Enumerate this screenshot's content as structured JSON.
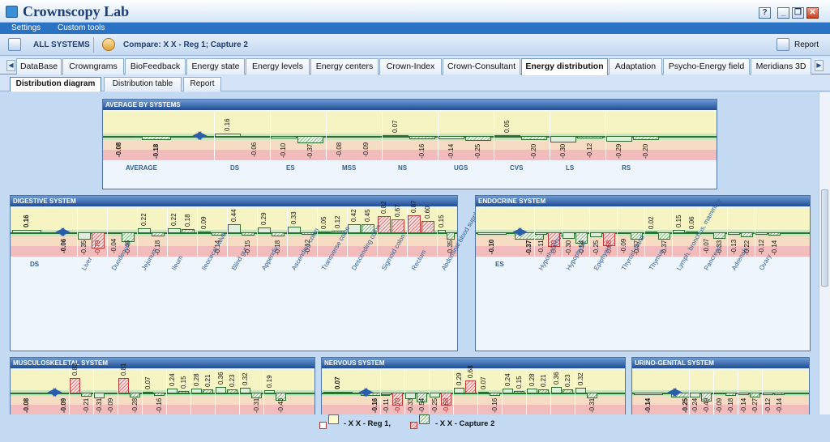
{
  "app": {
    "title": "Crownscopy Lab"
  },
  "window_buttons": [
    "?",
    "_",
    "❐",
    "✕"
  ],
  "menu": [
    "Settings",
    "Custom tools"
  ],
  "toolbar": {
    "all_systems": "ALL SYSTEMS",
    "compare": "Compare: X X  - Reg 1; Capture 2",
    "report": "Report"
  },
  "tabs": [
    "DataBase",
    "Crowngrams",
    "BioFeedback",
    "Energy state",
    "Energy levels",
    "Energy centers",
    "Crown-Index",
    "Crown-Consultant",
    "Energy distribution",
    "Adaptation",
    "Psycho-Energy field",
    "Meridians 3D"
  ],
  "active_tab": "Energy distribution",
  "subtabs": [
    "Distribution diagram",
    "Distribution table",
    "Report"
  ],
  "active_subtab": "Distribution diagram",
  "colors": {
    "accent": "#1e4c96",
    "green": "#c9e4bf",
    "yellow": "#f5f4c2",
    "orange": "#f5dcc2",
    "red": "#f2bcbc",
    "highlight": "#c23636"
  },
  "legend": {
    "reg": "- X X  - Reg 1,",
    "capture": "- X X  - Capture 2"
  },
  "chart_data": [
    {
      "type": "bar",
      "title": "AVERAGE BY SYSTEMS",
      "ylim": [
        -1,
        1
      ],
      "categories": [
        "AVERAGE",
        "DS",
        "ES",
        "MSS",
        "NS",
        "UGS",
        "CVS",
        "LS",
        "RS"
      ],
      "series": [
        {
          "name": "Reg 1",
          "values": [
            -0.08,
            0.16,
            -0.1,
            -0.08,
            0.07,
            -0.14,
            0.05,
            -0.3,
            -0.29
          ]
        },
        {
          "name": "Capture 2",
          "values": [
            -0.18,
            -0.06,
            -0.37,
            -0.09,
            -0.16,
            -0.25,
            -0.2,
            -0.12,
            -0.2
          ]
        }
      ]
    },
    {
      "type": "bar",
      "title": "DIGESTIVE SYSTEM",
      "ylim": [
        -1,
        1
      ],
      "categories": [
        "DS",
        "Liver",
        "Duodenum",
        "Jejunum",
        "Ileum",
        "Ileocecal valve",
        "Blind gut",
        "Appendix",
        "Ascending colon",
        "Transverse colon",
        "Descending colon",
        "Sigmoid colon",
        "Rectum",
        "Abdominal blood supply"
      ],
      "series": [
        {
          "name": "Reg 1",
          "values": [
            0.16,
            -0.35,
            -0.04,
            0.22,
            0.22,
            0.09,
            0.44,
            0.29,
            0.33,
            0.05,
            0.42,
            0.82,
            0.87,
            0.15
          ]
        },
        {
          "name": "Capture 2",
          "values": [
            -0.06,
            -0.79,
            -0.46,
            -0.18,
            0.18,
            -0.14,
            -0.15,
            -0.18,
            -0.12,
            0.12,
            0.45,
            0.67,
            0.6,
            -0.35
          ]
        }
      ]
    },
    {
      "type": "bar",
      "title": "ENDOCRINE SYSTEM",
      "ylim": [
        -1,
        1
      ],
      "categories": [
        "ES",
        "Hypothalamus",
        "Hypophysis",
        "Epiphysis",
        "Thyroid gland",
        "Thymus",
        "Lymph, bronchus, mammary",
        "Pancreas",
        "Adrenals",
        "Ovary"
      ],
      "series": [
        {
          "name": "Reg 1",
          "values": [
            -0.1,
            -0.11,
            -0.3,
            -0.25,
            -0.09,
            0.02,
            0.15,
            -0.07,
            -0.13,
            -0.12
          ]
        },
        {
          "name": "Capture 2",
          "values": [
            -0.37,
            -0.7,
            -0.54,
            -0.68,
            -0.37,
            -0.37,
            0.06,
            -0.33,
            -0.22,
            -0.14
          ]
        }
      ]
    },
    {
      "type": "bar",
      "title": "MUSCULOSKELETAL SYSTEM",
      "ylim": [
        -1,
        1
      ],
      "series": [
        {
          "name": "Reg 1",
          "values": [
            -0.08,
            0.83,
            -0.31,
            0.81,
            0.07,
            0.24,
            0.28,
            0.36,
            0.32,
            0.19
          ]
        },
        {
          "name": "Capture 2",
          "values": [
            -0.09,
            -0.21,
            -0.09,
            -0.28,
            -0.16,
            0.15,
            0.21,
            0.23,
            -0.31,
            -0.43
          ]
        }
      ]
    },
    {
      "type": "bar",
      "title": "NERVOUS SYSTEM",
      "ylim": [
        -1,
        1
      ],
      "series": [
        {
          "name": "Reg 1",
          "values": [
            0.07,
            -0.11,
            -0.33,
            -0.25,
            0.29,
            0.07,
            0.24,
            0.28,
            0.36,
            0.32
          ]
        },
        {
          "name": "Capture 2",
          "values": [
            -0.16,
            -0.7,
            -0.54,
            -0.68,
            0.68,
            -0.16,
            0.15,
            0.21,
            0.23,
            -0.31
          ]
        }
      ]
    },
    {
      "type": "bar",
      "title": "URINO-GENITAL SYSTEM",
      "ylim": [
        -1,
        1
      ],
      "series": [
        {
          "name": "Reg 1",
          "values": [
            -0.14,
            -0.24,
            -0.09,
            -0.14,
            -0.12
          ]
        },
        {
          "name": "Capture 2",
          "values": [
            -0.25,
            -0.49,
            -0.18,
            -0.27,
            -0.14
          ]
        }
      ]
    }
  ]
}
